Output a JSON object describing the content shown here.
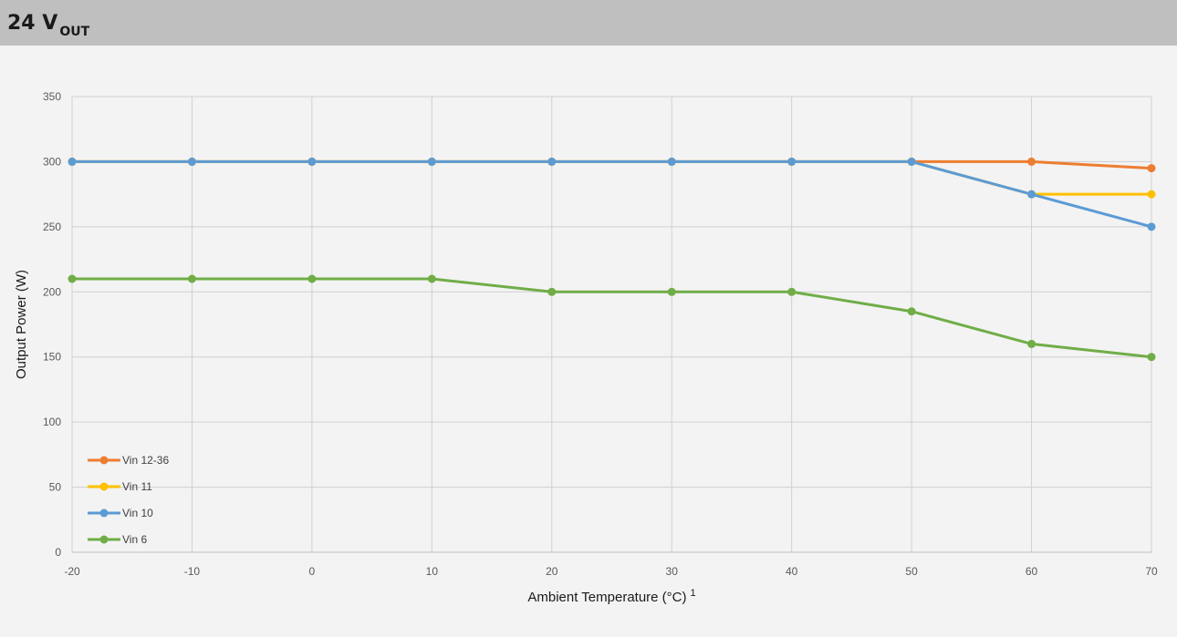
{
  "header": {
    "title_main": "24 V",
    "title_sub": "OUT"
  },
  "chart_data": {
    "type": "line",
    "title": "24 VOUT",
    "xlabel": "Ambient Temperature (°C)",
    "xlabel_sup": "1",
    "ylabel": "Output Power (W)",
    "x": [
      -20,
      -10,
      0,
      10,
      20,
      30,
      40,
      50,
      60,
      70
    ],
    "xlim": [
      -20,
      70
    ],
    "ylim": [
      0,
      350
    ],
    "xticks": [
      -20,
      -10,
      0,
      10,
      20,
      30,
      40,
      50,
      60,
      70
    ],
    "yticks": [
      0,
      50,
      100,
      150,
      200,
      250,
      300,
      350
    ],
    "grid": true,
    "legend_position": "bottom-left",
    "series": [
      {
        "name": "Vin 12-36",
        "color": "#ed7d31",
        "values": [
          300,
          300,
          300,
          300,
          300,
          300,
          300,
          300,
          300,
          295
        ]
      },
      {
        "name": "Vin 11",
        "color": "#ffc000",
        "values": [
          300,
          300,
          300,
          300,
          300,
          300,
          300,
          300,
          275,
          275
        ]
      },
      {
        "name": "Vin 10",
        "color": "#5b9bd5",
        "values": [
          300,
          300,
          300,
          300,
          300,
          300,
          300,
          300,
          275,
          250
        ]
      },
      {
        "name": "Vin 6",
        "color": "#70ad47",
        "values": [
          210,
          210,
          210,
          210,
          200,
          200,
          200,
          185,
          160,
          150
        ]
      }
    ]
  }
}
